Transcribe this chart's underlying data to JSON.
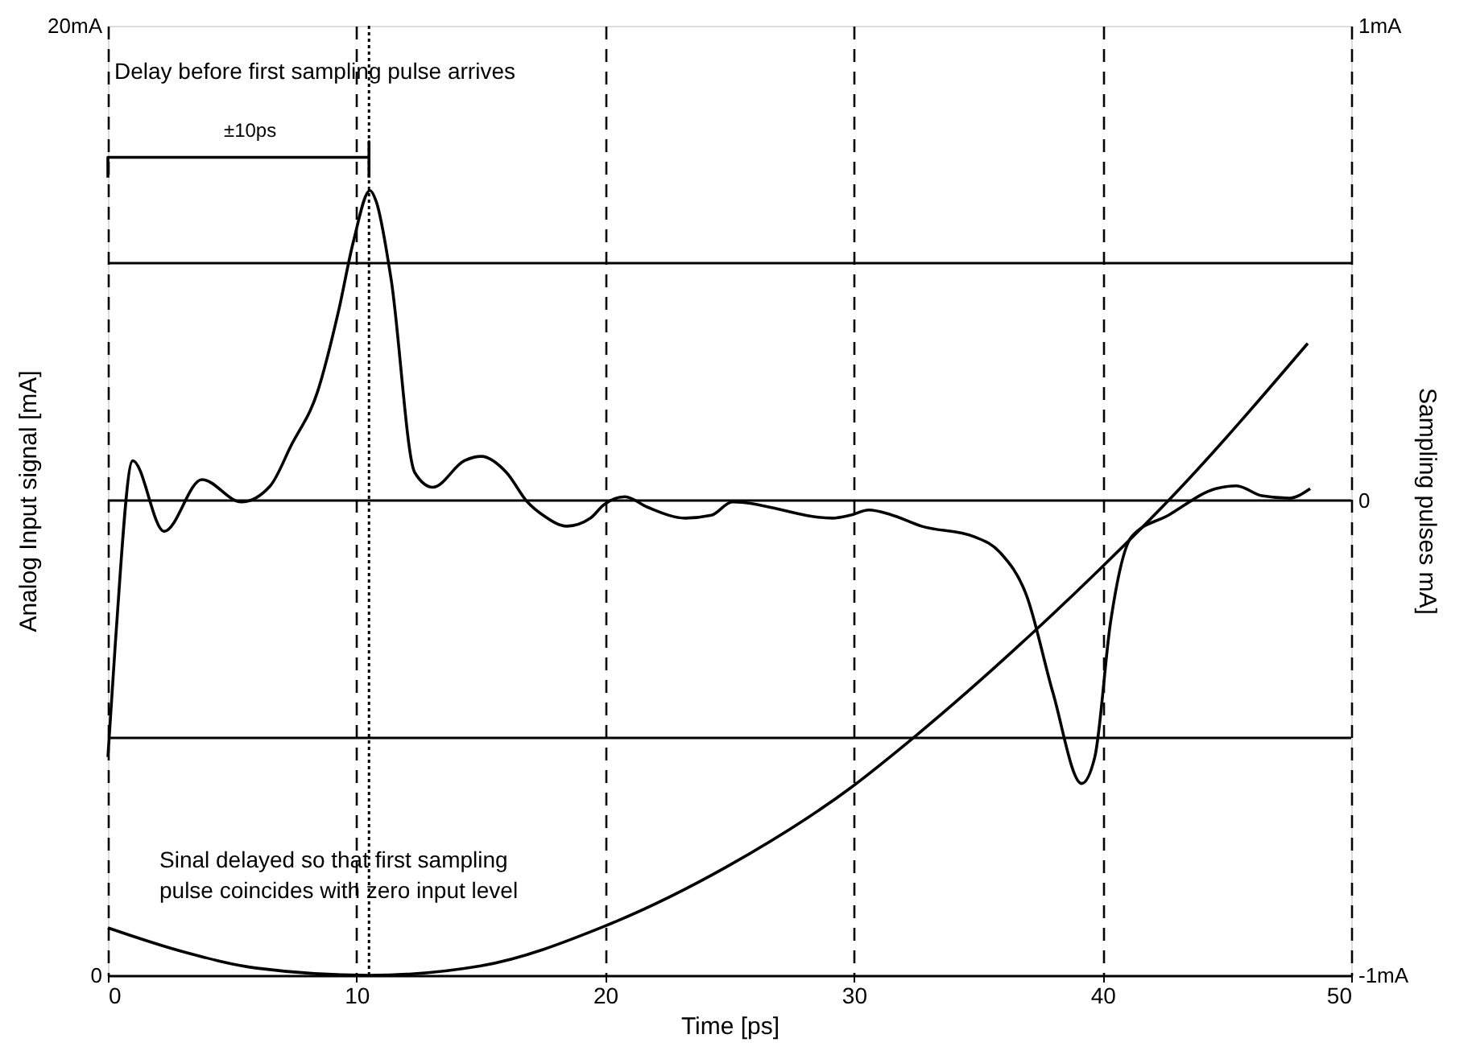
{
  "chart_data": {
    "type": "line",
    "xlabel": "Time [ps]",
    "ylabel": "Analog Input signal [mA]",
    "y2label": "Sampling pulses mA]",
    "xlim": [
      0,
      50
    ],
    "xticks": [
      0,
      10,
      20,
      30,
      40,
      50
    ],
    "ylim": [
      0,
      20
    ],
    "yticks": [
      0,
      {
        "value": 20,
        "label": "20mA"
      }
    ],
    "y2lim": [
      -1,
      1
    ],
    "y2ticks": [
      {
        "value": -1,
        "label": "-1mA"
      },
      0,
      {
        "value": 1,
        "label": "1mA"
      }
    ],
    "grid": "x",
    "marker": "none",
    "line_style": "solid",
    "series": [
      {
        "color": "#000000",
        "x": [
          0,
          0.3,
          1.0,
          2.26,
          3.78,
          5.37,
          6.53,
          7.37,
          8.43,
          9.27,
          9.87,
          10.54,
          10.79,
          11.39,
          12.34,
          13.07,
          14.34,
          15.02,
          16.03,
          16.87,
          17.5,
          18.46,
          19.41,
          19.94,
          20.79,
          21.7,
          23.22,
          24.27,
          25.11,
          29.13,
          29.85,
          30.6,
          31.5,
          32.72,
          34.83,
          35.89,
          36.95,
          38.0,
          39.16,
          39.69,
          40.32,
          41.17,
          42.65,
          44.55,
          45.39,
          46.4,
          47.5,
          48.35
        ],
        "values": [
          4.6,
          7.0,
          10.84,
          9.35,
          10.44,
          9.97,
          10.31,
          11.16,
          12.29,
          13.98,
          15.45,
          16.53,
          16.3,
          14.66,
          10.59,
          10.28,
          10.84,
          10.93,
          10.59,
          9.97,
          9.69,
          9.46,
          9.63,
          9.91,
          10.08,
          9.86,
          9.63,
          9.69,
          9.97,
          9.63,
          9.69,
          9.8,
          9.7,
          9.46,
          9.24,
          8.9,
          7.99,
          5.96,
          4.04,
          4.6,
          7.43,
          9.24,
          9.69,
          10.25,
          10.31,
          10.1,
          10.05,
          10.25
        ]
      },
      {
        "color": "#000000",
        "axis": "y2",
        "x": [
          0,
          3,
          6,
          10.5,
          15,
          20,
          24.9,
          29.87,
          32.5,
          37.37,
          39.9,
          42.65,
          48.25
        ],
        "values": [
          -0.9,
          -0.95,
          -0.985,
          -1,
          -0.98,
          -0.896,
          -0.771,
          -0.605,
          -0.495,
          -0.27,
          -0.144,
          0,
          0.331
        ]
      },
      {
        "color": "#000000",
        "x": [
          0,
          0,
          10.5,
          10.5,
          10.5
        ],
        "values": [
          16.8,
          17.23,
          17.23,
          17.56,
          16.8
        ]
      }
    ],
    "ref_lines": [
      {
        "axis": "y",
        "value": 5,
        "color": "#000000",
        "line_style": "solid"
      },
      {
        "axis": "y",
        "value": 10,
        "color": "#000000",
        "line_style": "solid"
      },
      {
        "axis": "y",
        "value": 15,
        "color": "#000000",
        "line_style": "solid"
      },
      {
        "axis": "x",
        "value": 10.5,
        "color": "#000000",
        "line_style": "dotted"
      }
    ],
    "annotations": [
      "Delay before first sampling pulse arrives",
      "±10ps",
      "Sinal delayed so that first sampling pulse coincides with zero input level"
    ]
  }
}
